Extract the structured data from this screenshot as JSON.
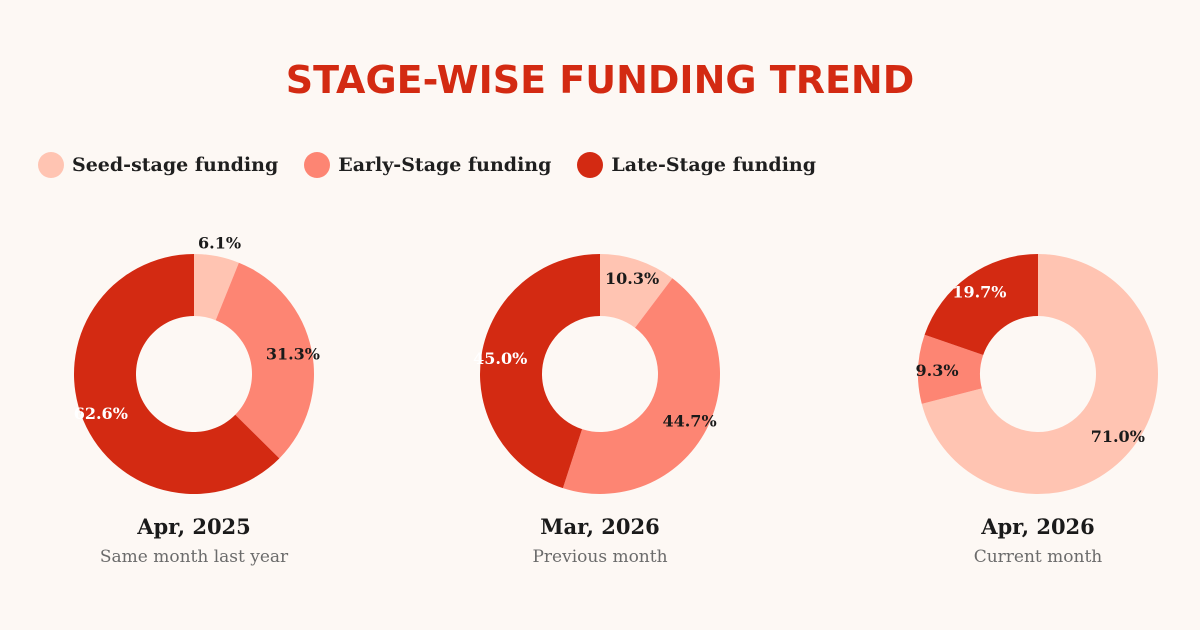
{
  "title": "STAGE-WISE FUNDING TREND",
  "legend": [
    {
      "label": "Seed-stage funding",
      "color": "#ffc4b2"
    },
    {
      "label": "Early-Stage funding",
      "color": "#fd8573"
    },
    {
      "label": "Late-Stage funding",
      "color": "#d32a12"
    }
  ],
  "chart_data": [
    {
      "type": "pie",
      "title": "Apr, 2025",
      "subtitle": "Same month last year",
      "categories": [
        "Seed-stage funding",
        "Early-Stage funding",
        "Late-Stage funding"
      ],
      "values": [
        6.1,
        31.3,
        62.6
      ],
      "labels": [
        "6.1%",
        "31.3%",
        "62.6%"
      ]
    },
    {
      "type": "pie",
      "title": "Mar, 2026",
      "subtitle": "Previous month",
      "categories": [
        "Seed-stage funding",
        "Early-Stage funding",
        "Late-Stage funding"
      ],
      "values": [
        10.3,
        44.7,
        45.0
      ],
      "labels": [
        "10.3%",
        "44.7%",
        "45.0%"
      ]
    },
    {
      "type": "pie",
      "title": "Apr, 2026",
      "subtitle": "Current month",
      "categories": [
        "Seed-stage funding",
        "Early-Stage funding",
        "Late-Stage funding"
      ],
      "values": [
        71.0,
        9.3,
        19.7
      ],
      "labels": [
        "71.0%",
        "9.3%",
        "19.7%"
      ]
    }
  ]
}
